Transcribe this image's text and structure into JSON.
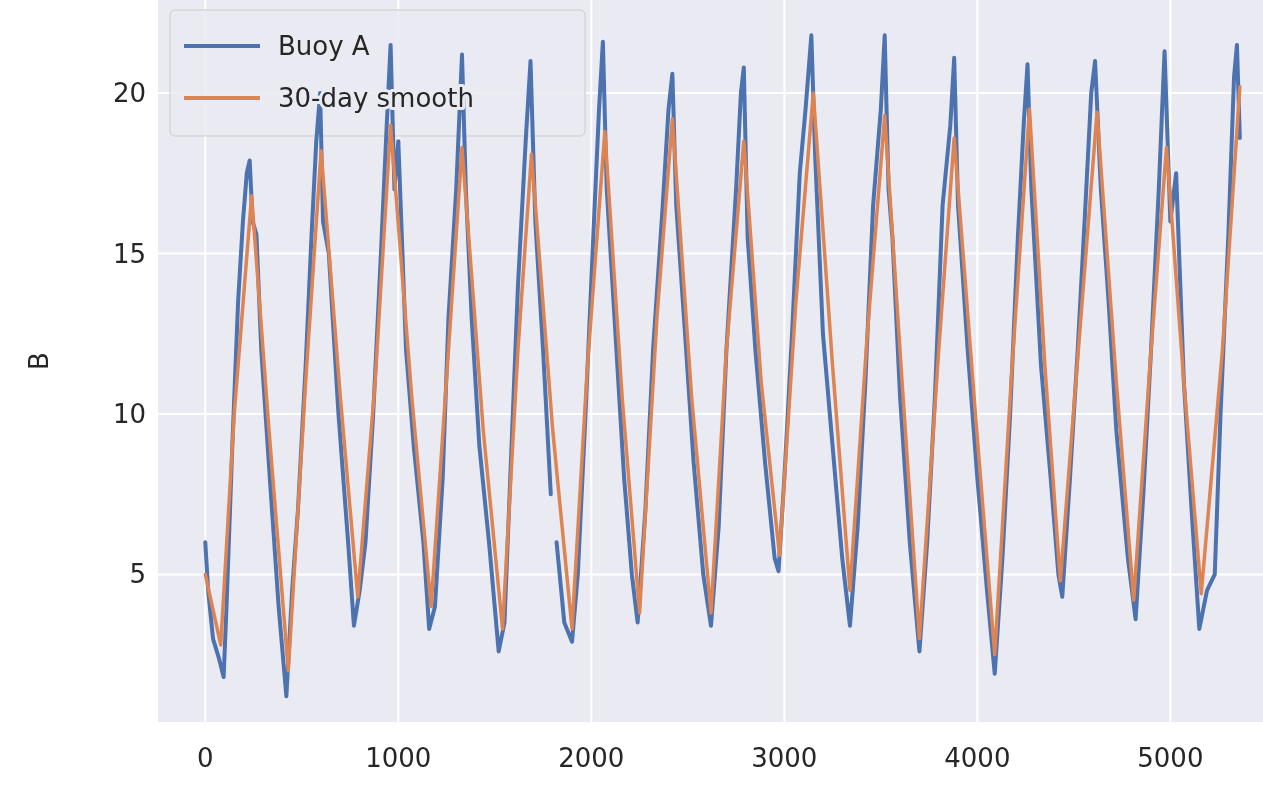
{
  "chart_data": {
    "type": "line",
    "ylabel": "B",
    "xlim": [
      -245,
      5480
    ],
    "ylim": [
      0.4,
      22.9
    ],
    "xticks": [
      0,
      1000,
      2000,
      3000,
      4000,
      5000
    ],
    "yticks": [
      5,
      10,
      15,
      20
    ],
    "grid": true,
    "legend": "top left",
    "line_style": "solid",
    "marker": "none",
    "series": [
      {
        "name": "Buoy A",
        "color": "#4c72b0",
        "x": [
          0,
          15,
          40,
          70,
          95,
          110,
          140,
          170,
          195,
          215,
          230,
          245,
          265,
          290,
          340,
          380,
          420,
          450,
          480,
          520,
          550,
          575,
          595,
          610,
          640,
          690,
          740,
          770,
          800,
          830,
          870,
          910,
          940,
          960,
          980,
          1000,
          1040,
          1080,
          1130,
          1160,
          1190,
          1230,
          1260,
          1300,
          1330,
          1350,
          1380,
          1420,
          1470,
          1520,
          1550,
          1580,
          1620,
          1660,
          1685,
          1710,
          1750,
          1790,
          1800,
          1820,
          1860,
          1900,
          1930,
          1970,
          2010,
          2040,
          2060,
          2080,
          2120,
          2170,
          2210,
          2240,
          2280,
          2320,
          2370,
          2400,
          2420,
          2440,
          2480,
          2530,
          2580,
          2620,
          2660,
          2700,
          2750,
          2775,
          2790,
          2810,
          2850,
          2900,
          2950,
          2970,
          3000,
          3040,
          3080,
          3110,
          3140,
          3160,
          3200,
          3250,
          3300,
          3340,
          3380,
          3420,
          3460,
          3500,
          3520,
          3540,
          3560,
          3600,
          3650,
          3700,
          3740,
          3780,
          3820,
          3860,
          3880,
          3900,
          3950,
          4000,
          4050,
          4090,
          4130,
          4170,
          4210,
          4240,
          4260,
          4280,
          4330,
          4380,
          4420,
          4440,
          4480,
          4520,
          4560,
          4590,
          4610,
          4640,
          4680,
          4720,
          4780,
          4820,
          4860,
          4900,
          4940,
          4970,
          5000,
          5030,
          5070,
          5110,
          5150,
          5190,
          5230,
          5260,
          5300,
          5330,
          5345,
          5360
        ],
        "values": [
          6.0,
          4.5,
          3.0,
          2.4,
          1.8,
          4.0,
          9.0,
          13.5,
          16.0,
          17.5,
          17.9,
          16.0,
          15.6,
          12.0,
          7.5,
          4.0,
          1.2,
          4.5,
          7.0,
          11.5,
          15.5,
          18.5,
          20.0,
          16.0,
          15.0,
          10.0,
          6.0,
          3.4,
          4.5,
          6.0,
          10.0,
          15.0,
          19.0,
          21.5,
          17.0,
          18.5,
          12.0,
          9.0,
          6.0,
          3.3,
          4.0,
          8.0,
          13.0,
          17.0,
          21.2,
          17.0,
          13.0,
          9.0,
          6.0,
          2.6,
          3.5,
          8.0,
          14.0,
          18.5,
          21.0,
          16.0,
          12.0,
          7.5,
          null,
          6.0,
          3.5,
          2.9,
          5.0,
          10.0,
          15.5,
          19.5,
          21.6,
          17.0,
          13.0,
          8.0,
          5.0,
          3.5,
          7.0,
          12.0,
          16.5,
          19.5,
          20.6,
          16.5,
          13.0,
          8.5,
          5.0,
          3.4,
          6.5,
          12.0,
          17.0,
          20.0,
          20.8,
          15.5,
          12.0,
          8.5,
          5.5,
          5.1,
          8.0,
          12.5,
          17.5,
          19.5,
          21.8,
          18.0,
          12.5,
          9.0,
          5.5,
          3.4,
          6.5,
          11.0,
          16.5,
          19.5,
          21.8,
          17.0,
          15.5,
          10.5,
          6.0,
          2.6,
          6.0,
          10.5,
          16.5,
          19.0,
          21.1,
          16.5,
          12.0,
          8.0,
          4.5,
          1.9,
          5.5,
          10.0,
          15.5,
          19.0,
          20.9,
          17.0,
          11.5,
          8.0,
          5.0,
          4.3,
          8.0,
          12.0,
          16.5,
          20.0,
          21.0,
          17.0,
          13.5,
          9.5,
          5.5,
          3.6,
          7.5,
          12.0,
          17.0,
          21.3,
          16.0,
          17.5,
          11.0,
          7.0,
          3.3,
          4.5,
          5.0,
          10.0,
          15.5,
          20.5,
          21.5,
          18.6
        ]
      },
      {
        "name": "30-day smooth",
        "color": "#dd8452",
        "x": [
          0,
          80,
          150,
          240,
          330,
          430,
          520,
          600,
          700,
          790,
          880,
          960,
          1070,
          1170,
          1260,
          1330,
          1440,
          1540,
          1620,
          1690,
          1800,
          1900,
          1980,
          2070,
          2160,
          2250,
          2340,
          2420,
          2520,
          2620,
          2700,
          2790,
          2880,
          2975,
          3060,
          3150,
          3250,
          3340,
          3430,
          3520,
          3610,
          3700,
          3800,
          3880,
          3990,
          4090,
          4180,
          4270,
          4350,
          4430,
          4530,
          4620,
          4720,
          4810,
          4900,
          4980,
          5070,
          5160,
          5270,
          5360
        ],
        "values": [
          5.0,
          2.8,
          10.0,
          16.8,
          9.5,
          2.0,
          11.0,
          18.2,
          10.5,
          4.3,
          11.0,
          19.0,
          10.5,
          4.0,
          12.0,
          18.3,
          9.5,
          3.3,
          12.0,
          18.1,
          9.5,
          3.3,
          11.5,
          18.8,
          10.5,
          3.8,
          13.0,
          19.2,
          10.5,
          3.8,
          12.0,
          18.5,
          11.0,
          5.6,
          13.5,
          20.0,
          11.5,
          4.5,
          12.5,
          19.3,
          11.0,
          3.0,
          12.0,
          18.6,
          10.0,
          2.5,
          11.5,
          19.5,
          11.5,
          4.8,
          12.5,
          19.4,
          11.0,
          4.2,
          12.0,
          18.3,
          11.0,
          4.4,
          12.0,
          20.2
        ]
      }
    ]
  }
}
